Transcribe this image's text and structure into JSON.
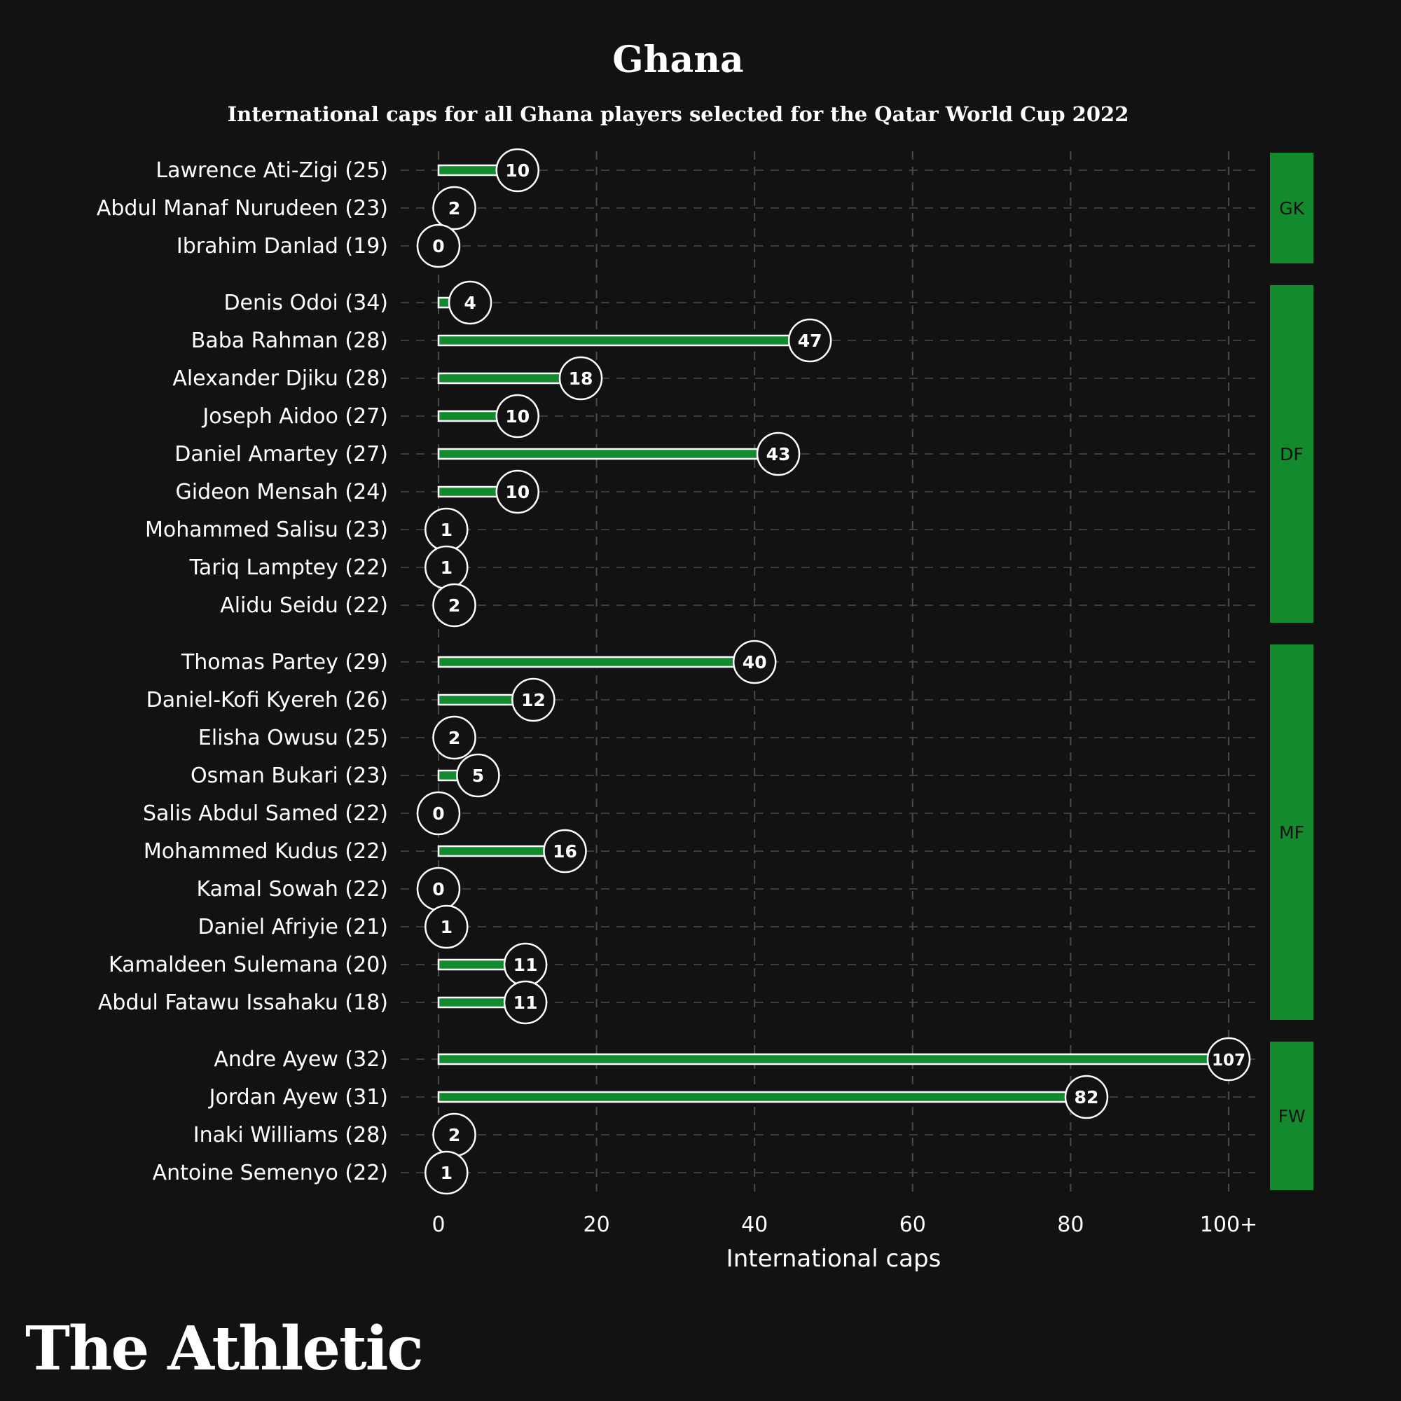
{
  "title": "Ghana",
  "subtitle": "International caps for all Ghana players selected for the Qatar World Cup 2022",
  "brand": "The Athletic",
  "colors": {
    "background": "#121212",
    "bar": "#148a2e",
    "group_band": "#148a2e",
    "grid": "#4a4a4a",
    "text": "#ffffff"
  },
  "chart_data": {
    "type": "bar",
    "orientation": "horizontal",
    "xlabel": "International caps",
    "xlim": [
      0,
      100
    ],
    "x_ticks": [
      0,
      20,
      40,
      60,
      80,
      100
    ],
    "x_tick_labels": [
      "0",
      "20",
      "40",
      "60",
      "80",
      "100+"
    ],
    "grid": true,
    "groups": [
      {
        "label": "GK",
        "players": [
          {
            "name": "Lawrence Ati-Zigi (25)",
            "caps": 10
          },
          {
            "name": "Abdul Manaf Nurudeen (23)",
            "caps": 2
          },
          {
            "name": "Ibrahim Danlad (19)",
            "caps": 0
          }
        ]
      },
      {
        "label": "DF",
        "players": [
          {
            "name": "Denis Odoi (34)",
            "caps": 4
          },
          {
            "name": "Baba Rahman (28)",
            "caps": 47
          },
          {
            "name": "Alexander Djiku (28)",
            "caps": 18
          },
          {
            "name": "Joseph Aidoo (27)",
            "caps": 10
          },
          {
            "name": "Daniel Amartey (27)",
            "caps": 43
          },
          {
            "name": "Gideon Mensah (24)",
            "caps": 10
          },
          {
            "name": "Mohammed Salisu (23)",
            "caps": 1
          },
          {
            "name": "Tariq Lamptey (22)",
            "caps": 1
          },
          {
            "name": "Alidu Seidu (22)",
            "caps": 2
          }
        ]
      },
      {
        "label": "MF",
        "players": [
          {
            "name": "Thomas Partey (29)",
            "caps": 40
          },
          {
            "name": "Daniel-Kofi Kyereh (26)",
            "caps": 12
          },
          {
            "name": "Elisha Owusu (25)",
            "caps": 2
          },
          {
            "name": "Osman Bukari (23)",
            "caps": 5
          },
          {
            "name": "Salis Abdul Samed (22)",
            "caps": 0
          },
          {
            "name": "Mohammed Kudus (22)",
            "caps": 16
          },
          {
            "name": "Kamal Sowah (22)",
            "caps": 0
          },
          {
            "name": "Daniel Afriyie (21)",
            "caps": 1
          },
          {
            "name": "Kamaldeen Sulemana (20)",
            "caps": 11
          },
          {
            "name": "Abdul Fatawu Issahaku (18)",
            "caps": 11
          }
        ]
      },
      {
        "label": "FW",
        "players": [
          {
            "name": "Andre Ayew (32)",
            "caps": 107
          },
          {
            "name": "Jordan Ayew (31)",
            "caps": 82
          },
          {
            "name": "Inaki Williams (28)",
            "caps": 2
          },
          {
            "name": "Antoine Semenyo (22)",
            "caps": 1
          }
        ]
      }
    ]
  }
}
